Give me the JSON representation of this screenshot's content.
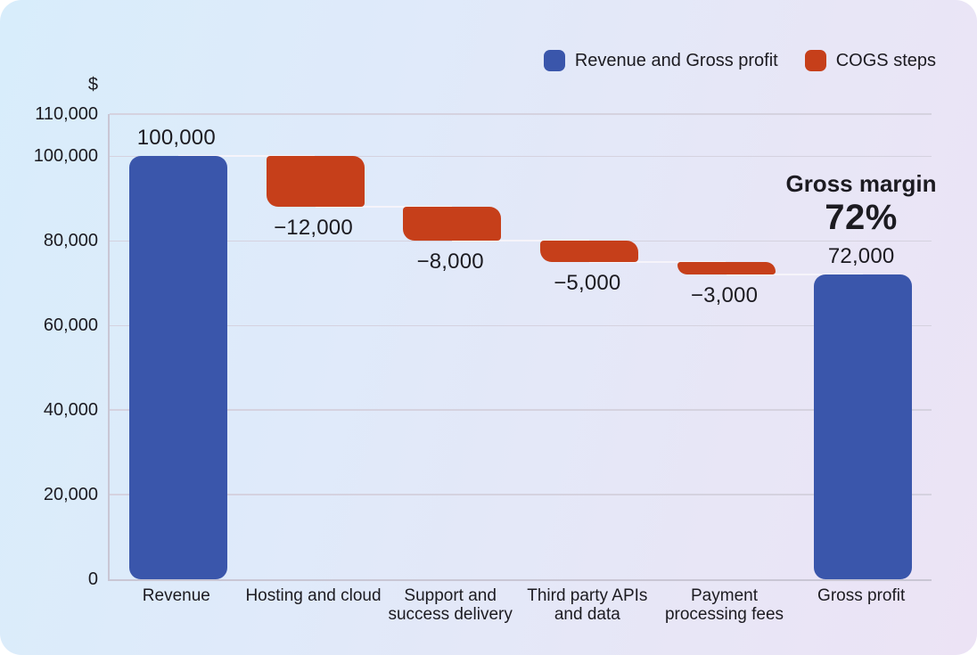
{
  "chart_data": {
    "type": "bar",
    "subtype": "waterfall",
    "title": "",
    "annotation": {
      "title": "Gross margin",
      "value": "72%"
    },
    "legend": [
      {
        "label": "Revenue and Gross profit",
        "color": "#3a56ab",
        "applies_to": "total"
      },
      {
        "label": "COGS steps",
        "color": "#c63f1a",
        "applies_to": "step"
      }
    ],
    "legend_position": "top-right",
    "grid": true,
    "y_axis": {
      "unit": "$",
      "min": 0,
      "max": 110000,
      "ticks": [
        {
          "value": 0,
          "label": "0"
        },
        {
          "value": 20000,
          "label": "20,000"
        },
        {
          "value": 40000,
          "label": "40,000"
        },
        {
          "value": 60000,
          "label": "60,000"
        },
        {
          "value": 80000,
          "label": "80,000"
        },
        {
          "value": 100000,
          "label": "100,000"
        },
        {
          "value": 110000,
          "label": "110,000"
        }
      ]
    },
    "categories": [
      "Revenue",
      "Hosting and cloud",
      "Support and success delivery",
      "Third party APIs and data",
      "Payment processing fees",
      "Gross profit"
    ],
    "bars": [
      {
        "category": "Revenue",
        "start": 0,
        "end": 100000,
        "delta": 100000,
        "role": "total",
        "value_label": "100,000",
        "label_position": "above"
      },
      {
        "category": "Hosting and cloud",
        "start": 100000,
        "end": 88000,
        "delta": -12000,
        "role": "step",
        "value_label": "−12,000",
        "label_position": "below"
      },
      {
        "category": "Support and success delivery",
        "start": 88000,
        "end": 80000,
        "delta": -8000,
        "role": "step",
        "value_label": "−8,000",
        "label_position": "below"
      },
      {
        "category": "Third party APIs and data",
        "start": 80000,
        "end": 75000,
        "delta": -5000,
        "role": "step",
        "value_label": "−5,000",
        "label_position": "below"
      },
      {
        "category": "Payment processing fees",
        "start": 75000,
        "end": 72000,
        "delta": -3000,
        "role": "step",
        "value_label": "−3,000",
        "label_position": "below"
      },
      {
        "category": "Gross profit",
        "start": 0,
        "end": 72000,
        "delta": 72000,
        "role": "total",
        "value_label": "72,000",
        "label_position": "above"
      }
    ],
    "colors": {
      "total": "#3a56ab",
      "step": "#c63f1a",
      "text": "#1c1b21",
      "gridline": "#d5d2df",
      "axis": "#c9c6d4",
      "connector": "#f6f4fa",
      "background_start": "#d8edfb",
      "background_end": "#ece3f5"
    }
  }
}
